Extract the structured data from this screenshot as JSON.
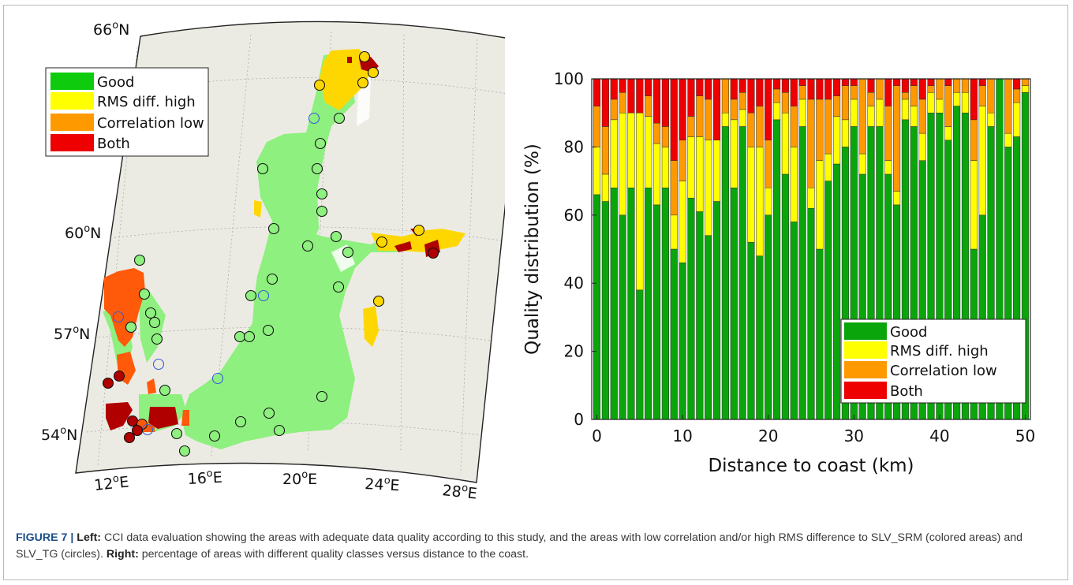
{
  "map": {
    "lat_labels": [
      {
        "text": "66",
        "unit": "N"
      },
      {
        "text": "60",
        "unit": "N"
      },
      {
        "text": "57",
        "unit": "N"
      },
      {
        "text": "54",
        "unit": "N"
      }
    ],
    "lon_labels": [
      {
        "text": "12",
        "unit": "E"
      },
      {
        "text": "16",
        "unit": "E"
      },
      {
        "text": "20",
        "unit": "E"
      },
      {
        "text": "24",
        "unit": "E"
      },
      {
        "text": "28",
        "unit": "E"
      }
    ],
    "legend": [
      "Good",
      "RMS diff. high",
      "Correlation low",
      "Both"
    ],
    "colors": {
      "good": "#8ef07e",
      "rms": "#ffd700",
      "corr": "#ff5a0a",
      "both": "#b00000",
      "land": "#ecebe3",
      "sea_outline": "#ffffff"
    }
  },
  "chart_data": {
    "type": "bar",
    "stacked": true,
    "xlabel": "Distance to coast (km)",
    "ylabel": "Quality distribution  (%)",
    "xlim": [
      0,
      50
    ],
    "ylim": [
      0,
      100
    ],
    "x_ticks": [
      "0",
      "10",
      "20",
      "30",
      "40",
      "50"
    ],
    "y_ticks": [
      "0",
      "20",
      "40",
      "60",
      "80",
      "100"
    ],
    "legend_position": "bottom-right",
    "colors": {
      "Good": "#0aa50a",
      "RMS diff. high": "#ffff00",
      "Correlation low": "#ff9900",
      "Both": "#ee0000"
    },
    "x": [
      0,
      1,
      2,
      3,
      4,
      5,
      6,
      7,
      8,
      9,
      10,
      11,
      12,
      13,
      14,
      15,
      16,
      17,
      18,
      19,
      20,
      21,
      22,
      23,
      24,
      25,
      26,
      27,
      28,
      29,
      30,
      31,
      32,
      33,
      34,
      35,
      36,
      37,
      38,
      39,
      40,
      41,
      42,
      43,
      44,
      45,
      46,
      47,
      48,
      49,
      50
    ],
    "series": [
      {
        "name": "Good",
        "values": [
          66,
          64,
          68,
          60,
          68,
          38,
          68,
          63,
          68,
          50,
          46,
          65,
          61,
          54,
          64,
          86,
          68,
          86,
          52,
          48,
          60,
          88,
          72,
          58,
          86,
          62,
          50,
          70,
          75,
          80,
          86,
          72,
          86,
          86,
          72,
          63,
          88,
          86,
          76,
          90,
          90,
          82,
          92,
          90,
          50,
          60,
          86,
          100,
          80,
          83,
          96
        ]
      },
      {
        "name": "RMS diff. high",
        "values": [
          14,
          8,
          20,
          30,
          22,
          52,
          21,
          18,
          12,
          10,
          24,
          18,
          22,
          28,
          18,
          4,
          20,
          5,
          28,
          32,
          8,
          5,
          18,
          22,
          8,
          6,
          26,
          8,
          14,
          8,
          8,
          6,
          6,
          8,
          4,
          4,
          6,
          6,
          8,
          6,
          4,
          4,
          4,
          6,
          26,
          32,
          4,
          0,
          4,
          10,
          2
        ]
      },
      {
        "name": "Correlation low",
        "values": [
          12,
          14,
          6,
          6,
          0,
          0,
          6,
          6,
          6,
          16,
          12,
          6,
          12,
          12,
          0,
          10,
          6,
          5,
          10,
          12,
          14,
          4,
          6,
          12,
          4,
          26,
          18,
          16,
          6,
          10,
          4,
          22,
          4,
          6,
          16,
          31,
          2,
          6,
          10,
          2,
          6,
          12,
          4,
          4,
          12,
          6,
          10,
          0,
          16,
          4,
          2
        ]
      },
      {
        "name": "Both",
        "values": [
          8,
          14,
          6,
          4,
          10,
          10,
          5,
          13,
          14,
          24,
          18,
          11,
          5,
          6,
          18,
          0,
          6,
          4,
          10,
          8,
          18,
          3,
          4,
          8,
          2,
          6,
          6,
          6,
          5,
          2,
          2,
          0,
          4,
          0,
          8,
          2,
          4,
          2,
          6,
          2,
          0,
          2,
          0,
          0,
          12,
          2,
          0,
          0,
          0,
          3,
          0
        ]
      }
    ]
  },
  "caption": {
    "label": "FIGURE 7 | ",
    "left_label": "Left:",
    "left_text": " CCI data evaluation showing the areas with adequate data quality according to this study, and the areas with low correlation and/or high RMS difference to SLV_SRM (colored areas) and SLV_TG (circles). ",
    "right_label": "Right:",
    "right_text": " percentage of areas with different quality classes versus distance to the coast."
  }
}
